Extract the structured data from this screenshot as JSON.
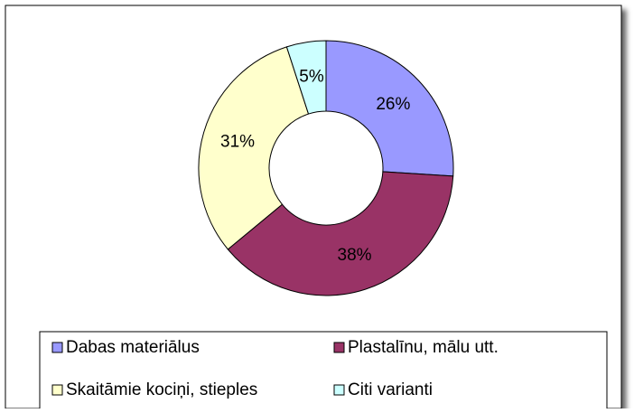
{
  "chart_data": {
    "type": "donut",
    "categories": [
      "Dabas materiālus",
      "Plastalīnu, mālu utt.",
      "Skaitāmie kociņi, stieples",
      "Citi varianti"
    ],
    "values": [
      26,
      38,
      31,
      5
    ],
    "value_labels": [
      "26%",
      "38%",
      "31%",
      "5%"
    ],
    "colors": [
      "#9999ff",
      "#993366",
      "#ffffcc",
      "#ccffff"
    ],
    "legend": "bottom"
  }
}
